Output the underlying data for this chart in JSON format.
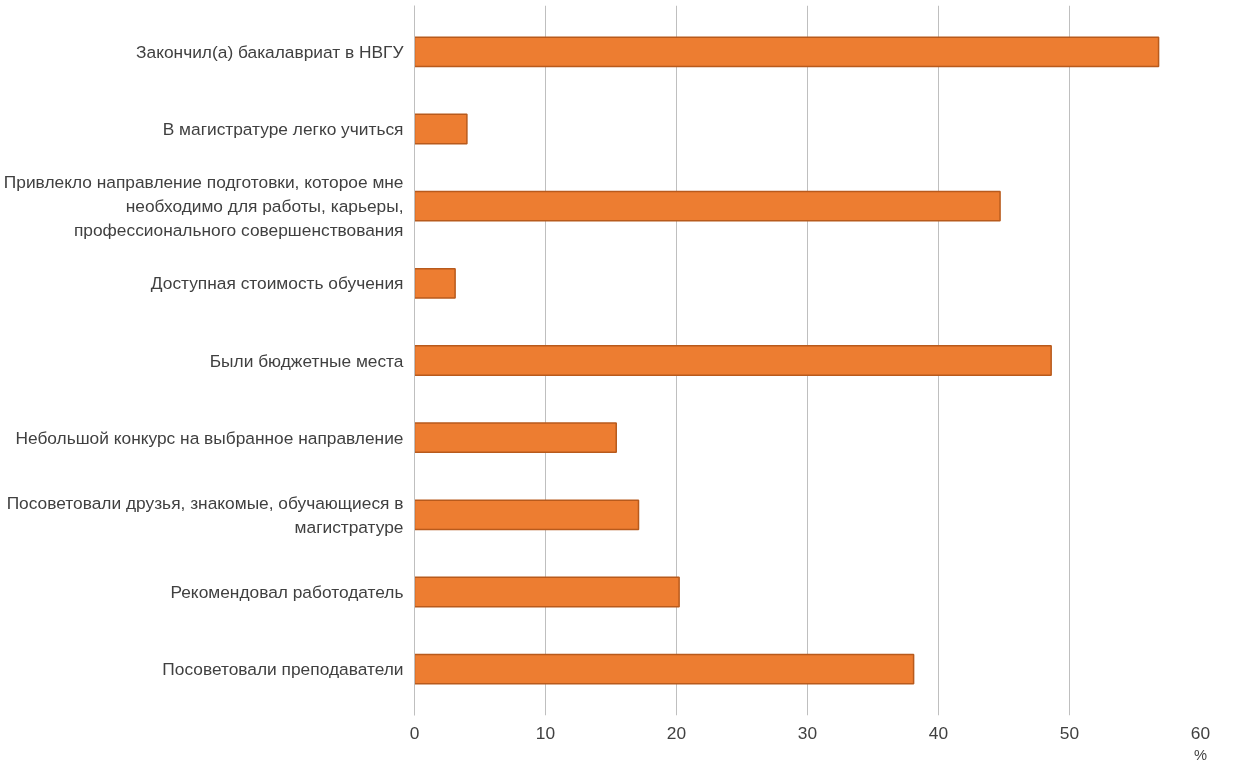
{
  "chart_data": {
    "type": "bar",
    "orientation": "horizontal",
    "categories": [
      "Закончил(а) бакалавриат в НВГУ",
      "В магистратуре легко учиться",
      "Привлекло направление подготовки, которое мне необходимо для работы, карьеры, профессионального совершенствования",
      "Доступная стоимость обучения",
      "Были бюджетные места",
      "Небольшой конкурс на выбранное направление",
      "Посоветовали друзья, знакомые, обучающиеся в магистратуре",
      "Рекомендовал работодатель",
      "Посоветовали преподаватели"
    ],
    "values": [
      56.8,
      4.0,
      44.7,
      3.1,
      48.6,
      15.4,
      17.1,
      20.2,
      38.1
    ],
    "color": "#ed7d31",
    "xlabel": "%",
    "xlim": [
      0,
      60
    ],
    "xticks": [
      0,
      10,
      20,
      30,
      40,
      50,
      60
    ],
    "grid": "x"
  }
}
